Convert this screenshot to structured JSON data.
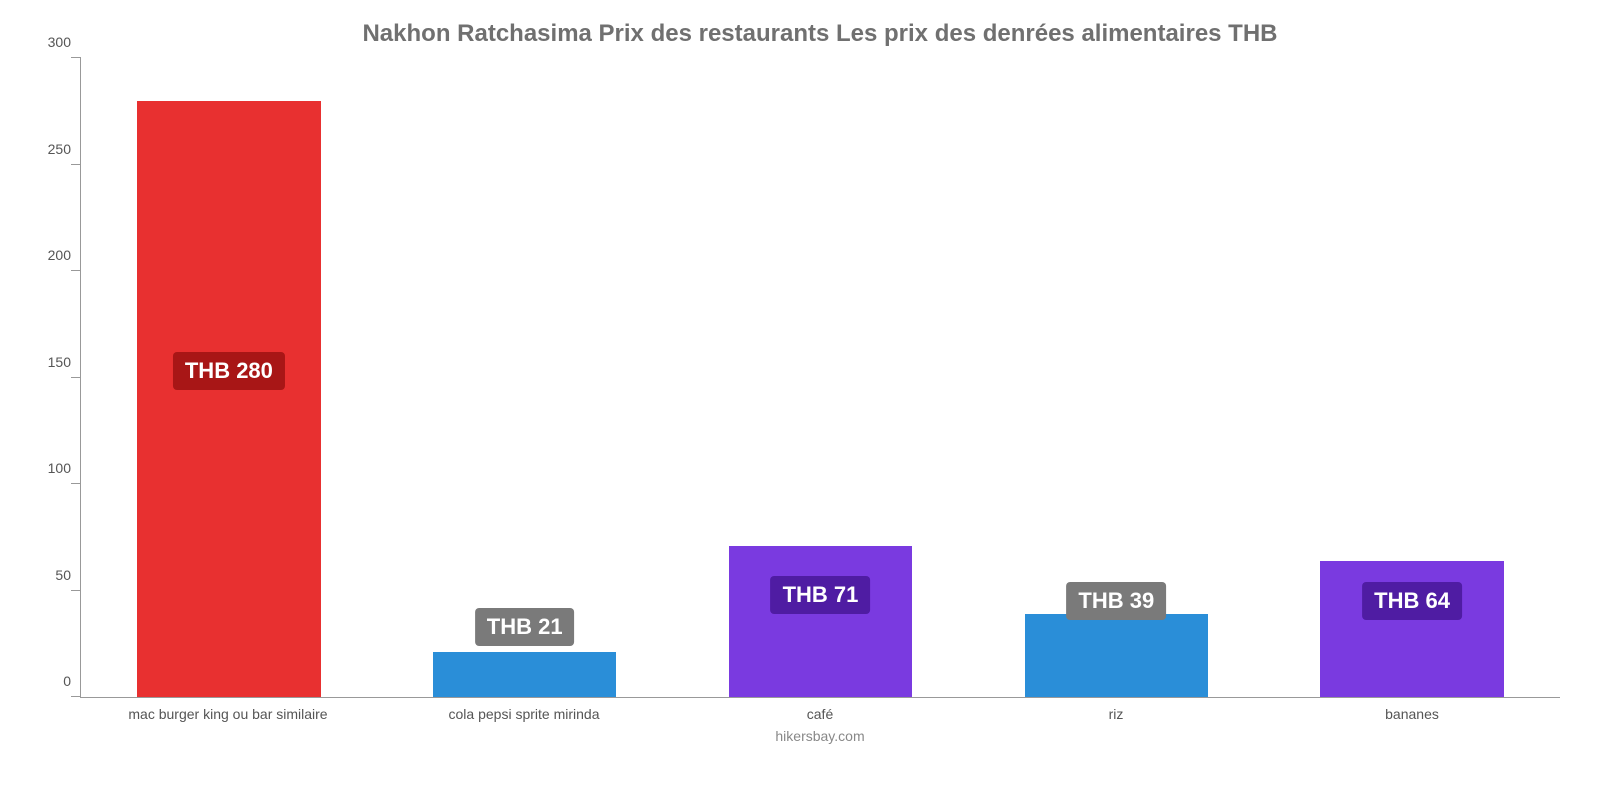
{
  "chart": {
    "type": "bar",
    "title": "Nakhon Ratchasima Prix des restaurants Les prix des denrées alimentaires THB",
    "title_fontsize": 24,
    "title_color": "#707070",
    "background_color": "#ffffff",
    "axis_color": "#999999",
    "label_color": "#555555",
    "label_fontsize": 14,
    "ylim": [
      0,
      300
    ],
    "ytick_step": 50,
    "yticks": [
      0,
      50,
      100,
      150,
      200,
      250,
      300
    ],
    "bar_width_pct": 62,
    "footer": "hikersbay.com",
    "badge_fontsize": 22,
    "badge_text_color": "#ffffff",
    "badge_radius": 4,
    "items": [
      {
        "category": "mac burger king ou bar similaire",
        "value": 280,
        "value_label": "THB 280",
        "bar_color": "#e83030",
        "badge_bg": "#a81616",
        "badge_bottom_pct": 48
      },
      {
        "category": "cola pepsi sprite mirinda",
        "value": 21,
        "value_label": "THB 21",
        "bar_color": "#2a8ed8",
        "badge_bg": "#7a7a7a",
        "badge_bottom_pct": 8
      },
      {
        "category": "café",
        "value": 71,
        "value_label": "THB 71",
        "bar_color": "#7a3ae0",
        "badge_bg": "#4f1ca3",
        "badge_bottom_pct": 13
      },
      {
        "category": "riz",
        "value": 39,
        "value_label": "THB 39",
        "bar_color": "#2a8ed8",
        "badge_bg": "#7a7a7a",
        "badge_bottom_pct": 12
      },
      {
        "category": "bananes",
        "value": 64,
        "value_label": "THB 64",
        "bar_color": "#7a3ae0",
        "badge_bg": "#4f1ca3",
        "badge_bottom_pct": 12
      }
    ]
  }
}
